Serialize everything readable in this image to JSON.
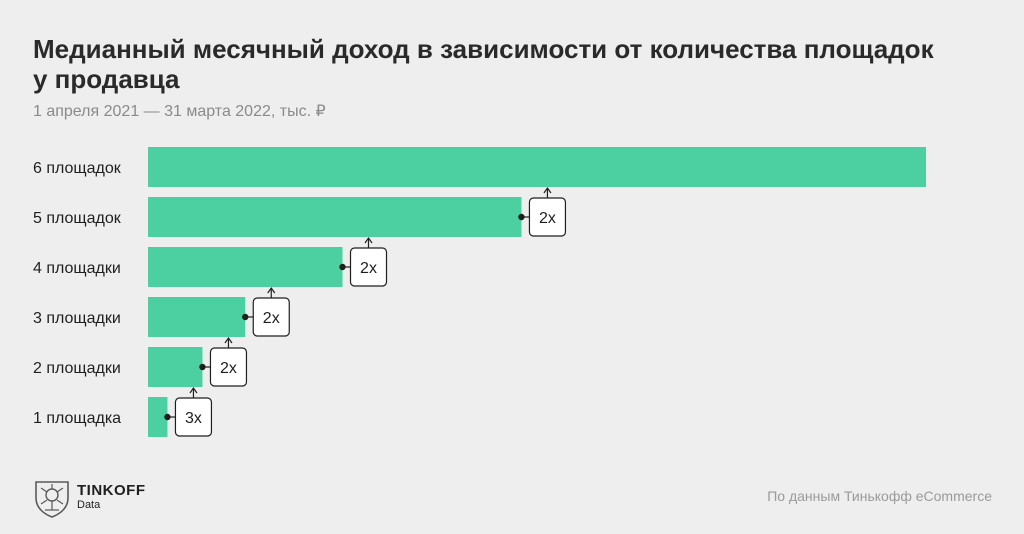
{
  "header": {
    "title": "Медианный месячный доход  в зависимости от количества площадок\nу продавца",
    "subtitle": "1 апреля 2021 — 31 марта 2022,  тыс. ₽"
  },
  "footer": {
    "brand": "TINKOFF",
    "brand_sub": "Data",
    "source": "По данным Тинькофф eCommerce"
  },
  "colors": {
    "bar": "#4dd0a1",
    "background": "#eeeeee"
  },
  "chart_data": {
    "type": "bar",
    "orientation": "horizontal",
    "categories": [
      "6 площадок",
      "5 площадок",
      "4 площадки",
      "3 площадки",
      "2 площадки",
      "1 площадка"
    ],
    "values": [
      100,
      48,
      25,
      12.5,
      7,
      2.5
    ],
    "multipliers": [
      "",
      "2x",
      "2x",
      "2x",
      "2x",
      "3x"
    ],
    "xlim": [
      0,
      100
    ],
    "grid": false,
    "legend": "none"
  }
}
